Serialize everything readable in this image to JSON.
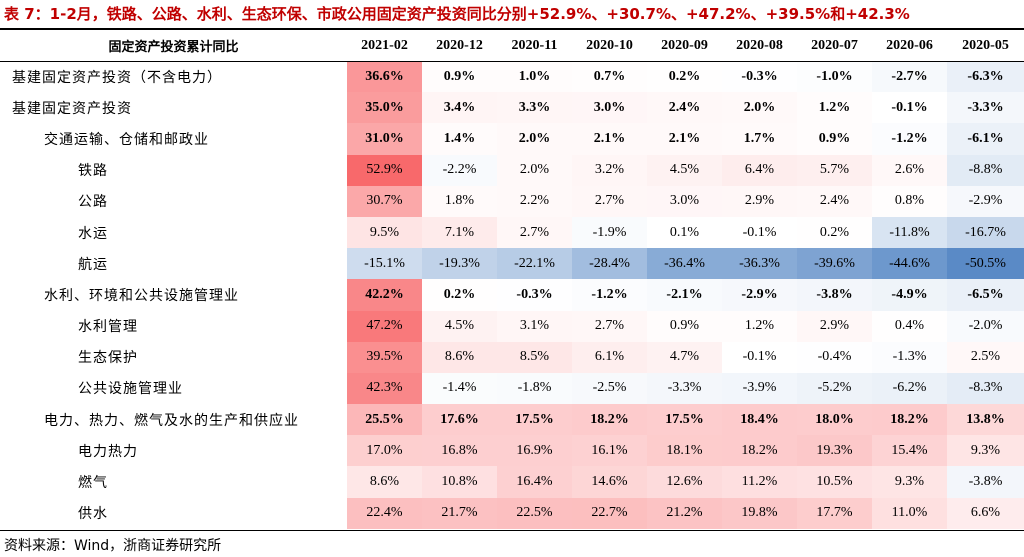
{
  "title": "表 7：1-2月，铁路、公路、水利、生态环保、市政公用固定资产投资同比分别+52.9%、+30.7%、+47.2%、+39.5%和+42.3%",
  "header": {
    "category": "固定资产投资累计同比",
    "columns": [
      "2021-02",
      "2020-12",
      "2020-11",
      "2020-10",
      "2020-09",
      "2020-08",
      "2020-07",
      "2020-06",
      "2020-05"
    ]
  },
  "rows": [
    {
      "label": "基建固定资产投资（不含电力）",
      "indent": 0,
      "bold": true,
      "values": [
        "36.6%",
        "0.9%",
        "1.0%",
        "0.7%",
        "0.2%",
        "-0.3%",
        "-1.0%",
        "-2.7%",
        "-6.3%"
      ],
      "numbers": [
        36.6,
        0.9,
        1.0,
        0.7,
        0.2,
        -0.3,
        -1.0,
        -2.7,
        -6.3
      ]
    },
    {
      "label": "基建固定资产投资",
      "indent": 0,
      "bold": true,
      "values": [
        "35.0%",
        "3.4%",
        "3.3%",
        "3.0%",
        "2.4%",
        "2.0%",
        "1.2%",
        "-0.1%",
        "-3.3%"
      ],
      "numbers": [
        35.0,
        3.4,
        3.3,
        3.0,
        2.4,
        2.0,
        1.2,
        -0.1,
        -3.3
      ]
    },
    {
      "label": "交通运输、仓储和邮政业",
      "indent": 1,
      "bold": true,
      "values": [
        "31.0%",
        "1.4%",
        "2.0%",
        "2.1%",
        "2.1%",
        "1.7%",
        "0.9%",
        "-1.2%",
        "-6.1%"
      ],
      "numbers": [
        31.0,
        1.4,
        2.0,
        2.1,
        2.1,
        1.7,
        0.9,
        -1.2,
        -6.1
      ]
    },
    {
      "label": "铁路",
      "indent": 2,
      "bold": false,
      "values": [
        "52.9%",
        "-2.2%",
        "2.0%",
        "3.2%",
        "4.5%",
        "6.4%",
        "5.7%",
        "2.6%",
        "-8.8%"
      ],
      "numbers": [
        52.9,
        -2.2,
        2.0,
        3.2,
        4.5,
        6.4,
        5.7,
        2.6,
        -8.8
      ]
    },
    {
      "label": "公路",
      "indent": 2,
      "bold": false,
      "values": [
        "30.7%",
        "1.8%",
        "2.2%",
        "2.7%",
        "3.0%",
        "2.9%",
        "2.4%",
        "0.8%",
        "-2.9%"
      ],
      "numbers": [
        30.7,
        1.8,
        2.2,
        2.7,
        3.0,
        2.9,
        2.4,
        0.8,
        -2.9
      ]
    },
    {
      "label": "水运",
      "indent": 2,
      "bold": false,
      "values": [
        "9.5%",
        "7.1%",
        "2.7%",
        "-1.9%",
        "0.1%",
        "-0.1%",
        "0.2%",
        "-11.8%",
        "-16.7%"
      ],
      "numbers": [
        9.5,
        7.1,
        2.7,
        -1.9,
        0.1,
        -0.1,
        0.2,
        -11.8,
        -16.7
      ]
    },
    {
      "label": "航运",
      "indent": 2,
      "bold": false,
      "values": [
        "-15.1%",
        "-19.3%",
        "-22.1%",
        "-28.4%",
        "-36.4%",
        "-36.3%",
        "-39.6%",
        "-44.6%",
        "-50.5%"
      ],
      "numbers": [
        -15.1,
        -19.3,
        -22.1,
        -28.4,
        -36.4,
        -36.3,
        -39.6,
        -44.6,
        -50.5
      ]
    },
    {
      "label": "水利、环境和公共设施管理业",
      "indent": 1,
      "bold": true,
      "values": [
        "42.2%",
        "0.2%",
        "-0.3%",
        "-1.2%",
        "-2.1%",
        "-2.9%",
        "-3.8%",
        "-4.9%",
        "-6.5%"
      ],
      "numbers": [
        42.2,
        0.2,
        -0.3,
        -1.2,
        -2.1,
        -2.9,
        -3.8,
        -4.9,
        -6.5
      ]
    },
    {
      "label": "水利管理",
      "indent": 2,
      "bold": false,
      "values": [
        "47.2%",
        "4.5%",
        "3.1%",
        "2.7%",
        "0.9%",
        "1.2%",
        "2.9%",
        "0.4%",
        "-2.0%"
      ],
      "numbers": [
        47.2,
        4.5,
        3.1,
        2.7,
        0.9,
        1.2,
        2.9,
        0.4,
        -2.0
      ]
    },
    {
      "label": "生态保护",
      "indent": 2,
      "bold": false,
      "values": [
        "39.5%",
        "8.6%",
        "8.5%",
        "6.1%",
        "4.7%",
        "-0.1%",
        "-0.4%",
        "-1.3%",
        "2.5%"
      ],
      "numbers": [
        39.5,
        8.6,
        8.5,
        6.1,
        4.7,
        -0.1,
        -0.4,
        -1.3,
        2.5
      ]
    },
    {
      "label": "公共设施管理业",
      "indent": 2,
      "bold": false,
      "values": [
        "42.3%",
        "-1.4%",
        "-1.8%",
        "-2.5%",
        "-3.3%",
        "-3.9%",
        "-5.2%",
        "-6.2%",
        "-8.3%"
      ],
      "numbers": [
        42.3,
        -1.4,
        -1.8,
        -2.5,
        -3.3,
        -3.9,
        -5.2,
        -6.2,
        -8.3
      ]
    },
    {
      "label": "电力、热力、燃气及水的生产和供应业",
      "indent": 1,
      "bold": true,
      "values": [
        "25.5%",
        "17.6%",
        "17.5%",
        "18.2%",
        "17.5%",
        "18.4%",
        "18.0%",
        "18.2%",
        "13.8%"
      ],
      "numbers": [
        25.5,
        17.6,
        17.5,
        18.2,
        17.5,
        18.4,
        18.0,
        18.2,
        13.8
      ]
    },
    {
      "label": "电力热力",
      "indent": 2,
      "bold": false,
      "values": [
        "17.0%",
        "16.8%",
        "16.9%",
        "16.1%",
        "18.1%",
        "18.2%",
        "19.3%",
        "15.4%",
        "9.3%"
      ],
      "numbers": [
        17.0,
        16.8,
        16.9,
        16.1,
        18.1,
        18.2,
        19.3,
        15.4,
        9.3
      ]
    },
    {
      "label": "燃气",
      "indent": 2,
      "bold": false,
      "values": [
        "8.6%",
        "10.8%",
        "16.4%",
        "14.6%",
        "12.6%",
        "11.2%",
        "10.5%",
        "9.3%",
        "-3.8%"
      ],
      "numbers": [
        8.6,
        10.8,
        16.4,
        14.6,
        12.6,
        11.2,
        10.5,
        9.3,
        -3.8
      ]
    },
    {
      "label": "供水",
      "indent": 2,
      "bold": false,
      "values": [
        "22.4%",
        "21.7%",
        "22.5%",
        "22.7%",
        "21.2%",
        "19.8%",
        "17.7%",
        "11.0%",
        "6.6%"
      ],
      "numbers": [
        22.4,
        21.7,
        22.5,
        22.7,
        21.2,
        19.8,
        17.7,
        11.0,
        6.6
      ]
    }
  ],
  "heatmap_colors": {
    "positive": "#f8696b",
    "negative": "#5a8ac6",
    "neutral": "#ffffff"
  },
  "source": "资料来源：Wind，浙商证券研究所"
}
